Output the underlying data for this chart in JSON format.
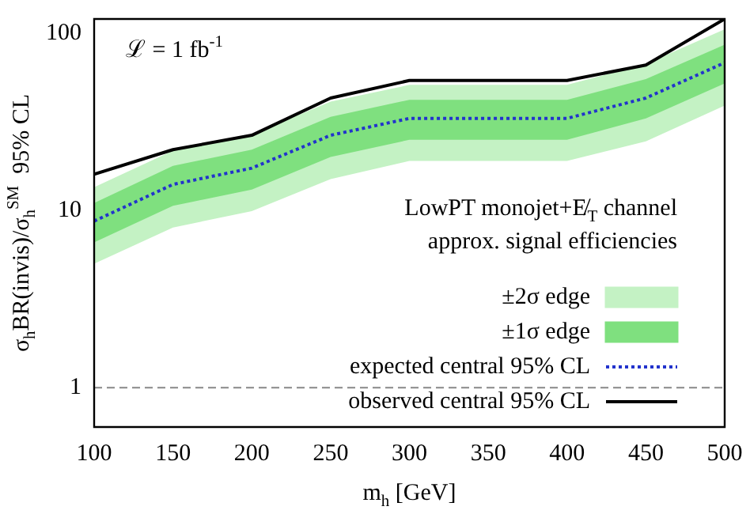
{
  "chart_data": {
    "type": "line",
    "xlabel": "m$_{h}$ [GeV]",
    "ylabel": "σ$_{h}$BR(invis)/σ$_{h}$$^{SM}$  95% CL",
    "legend_title": "LowPT monojet+E̸$_{T}$ channel\napprox. signal efficiencies",
    "annotations": [
      "ℒ = 1 fb$^{-1}$"
    ],
    "x": [
      100,
      150,
      200,
      250,
      300,
      350,
      400,
      450,
      500
    ],
    "series": [
      {
        "name": "±2σ edge",
        "type": "area",
        "color": "#c4f2c4",
        "values": [
          null,
          null,
          null,
          null,
          null,
          null,
          null,
          null,
          null
        ],
        "lower": [
          5,
          8,
          9.9,
          15,
          19,
          19,
          19,
          24.5,
          39
        ],
        "upper": [
          13.5,
          21.7,
          26.8,
          41,
          51,
          51,
          51,
          67,
          105
        ]
      },
      {
        "name": "±1σ edge",
        "type": "area",
        "color": "#7fe07f",
        "values": [
          null,
          null,
          null,
          null,
          null,
          null,
          null,
          null,
          null
        ],
        "lower": [
          6.6,
          10.6,
          13.1,
          20,
          25,
          25,
          25,
          33,
          52
        ],
        "upper": [
          11,
          17.8,
          22,
          33.7,
          42,
          42,
          42,
          55,
          86
        ]
      },
      {
        "name": "expected central 95% CL",
        "type": "line",
        "color": "#2233cc",
        "line_style": "dotted",
        "values": [
          8.7,
          14,
          17.3,
          26.5,
          33,
          33,
          33,
          43,
          68
        ]
      },
      {
        "name": "observed central 95% CL",
        "type": "line",
        "color": "#000000",
        "line_style": "solid",
        "values": [
          16,
          22,
          26.5,
          43,
          54,
          54,
          54,
          66,
          120
        ]
      }
    ],
    "xlim": [
      100,
      500
    ],
    "xticks": [
      100,
      150,
      200,
      250,
      300,
      350,
      400,
      450,
      500
    ],
    "ylim": [
      0.6,
      120
    ],
    "yticks": [
      1,
      10,
      100
    ],
    "log": "y",
    "grid": false,
    "legend": "bottom right",
    "ref_lines": [
      {
        "axis": "y",
        "value": 1,
        "color": "#888888",
        "line_style": "dashed"
      }
    ]
  }
}
